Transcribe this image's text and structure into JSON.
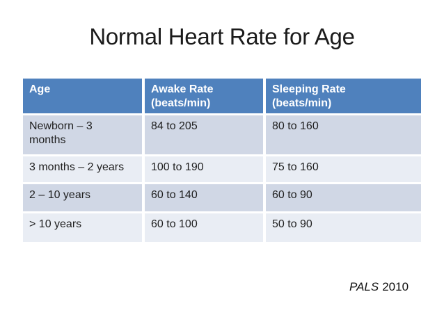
{
  "slide": {
    "title": "Normal Heart Rate for Age",
    "citation": {
      "source": "PALS",
      "year": "2010"
    }
  },
  "table": {
    "headers": [
      {
        "line1": "Age",
        "line2": ""
      },
      {
        "line1": "Awake Rate",
        "line2": "(beats/min)"
      },
      {
        "line1": "Sleeping Rate",
        "line2": "(beats/min)"
      }
    ],
    "rows": [
      {
        "age": "Newborn – 3 months",
        "awake": "84 to 205",
        "sleeping": "80 to 160"
      },
      {
        "age": "3 months – 2 years",
        "awake": "100 to 190",
        "sleeping": "75 to 160"
      },
      {
        "age": "2 – 10 years",
        "awake": "60 to 140",
        "sleeping": "60 to 90"
      },
      {
        "age": "> 10 years",
        "awake": "60 to 100",
        "sleeping": "50 to 90"
      }
    ]
  },
  "colors": {
    "header_bg": "#4f81bd",
    "header_text": "#ffffff",
    "band_dark": "#d0d7e5",
    "band_light": "#e9edf4",
    "body_text": "#1f1f1f"
  }
}
